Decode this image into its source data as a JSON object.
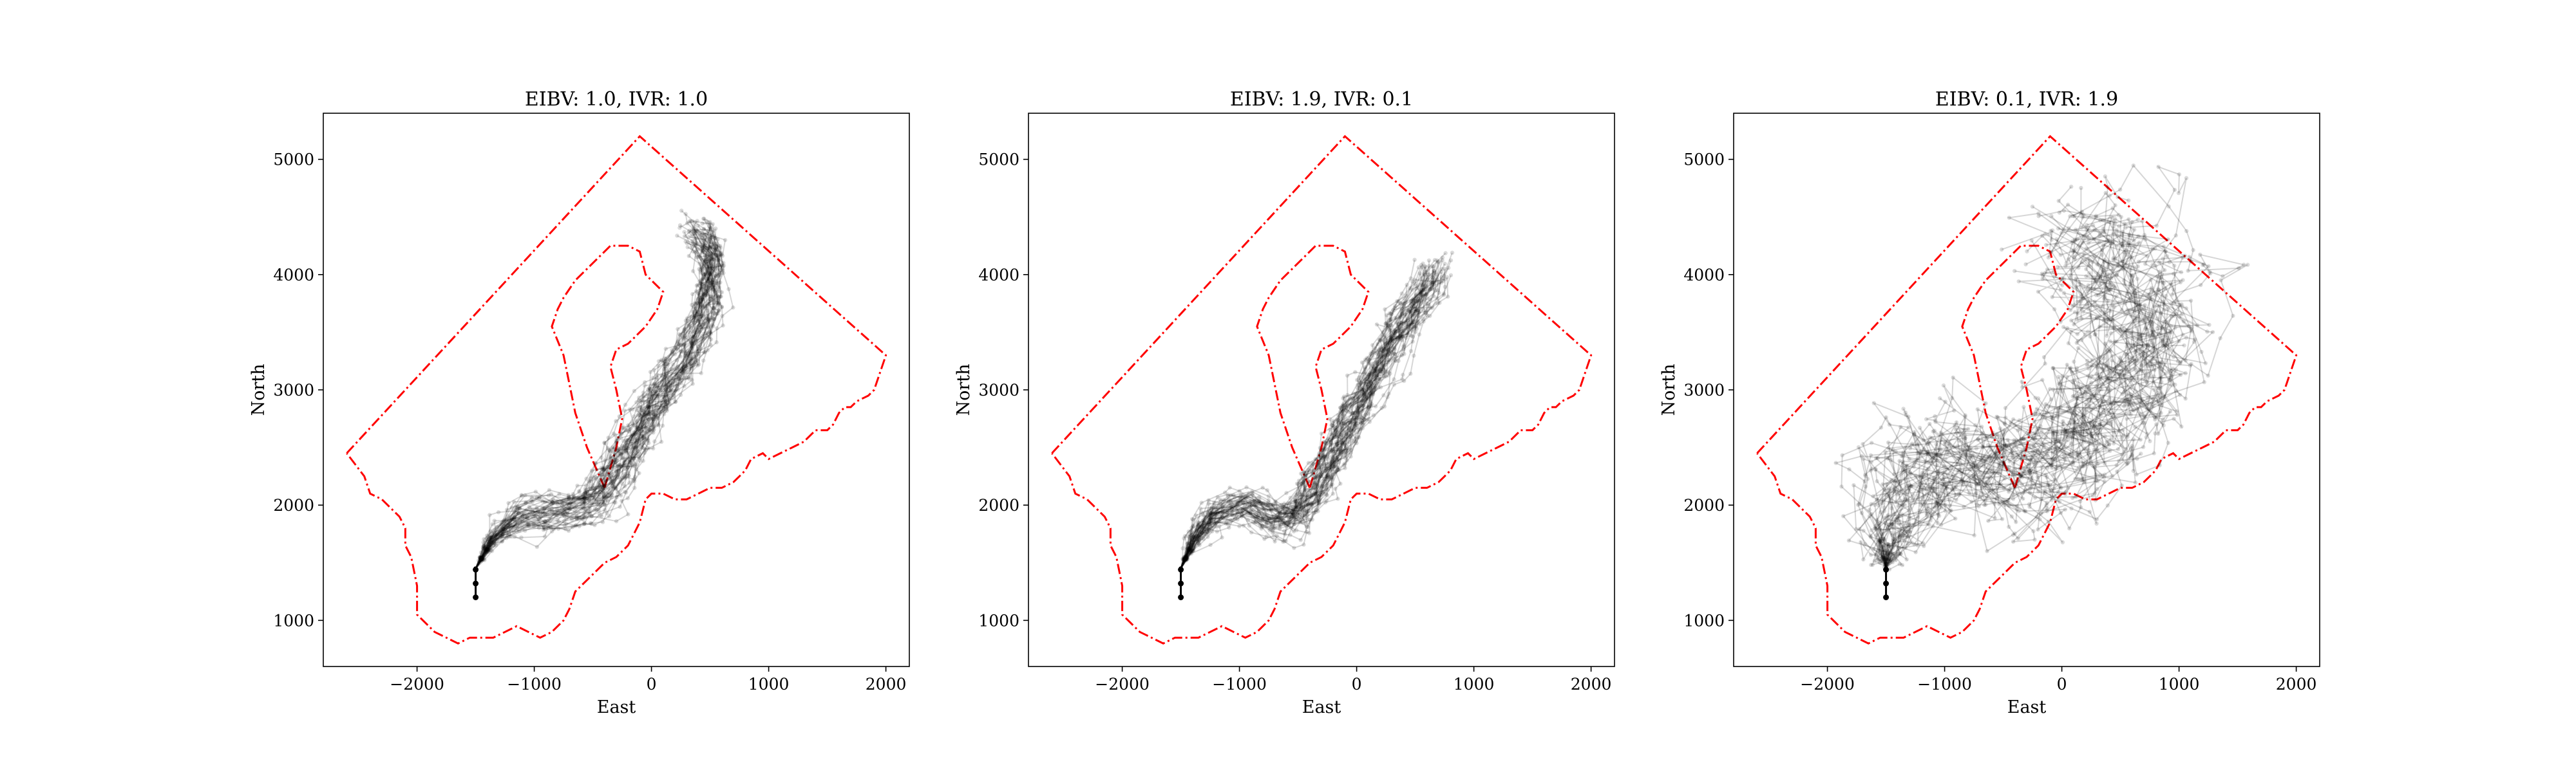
{
  "chart_data": [
    {
      "type": "line",
      "title": "EIBV: 1.0, IVR: 1.0",
      "xlabel": "East",
      "ylabel": "North",
      "xlim": [
        -2800,
        2200
      ],
      "ylim": [
        600,
        5400
      ],
      "xticks": [
        -2000,
        -1000,
        0,
        1000,
        2000
      ],
      "xtick_labels": [
        "−2000",
        "−1000",
        "0",
        "1000",
        "2000"
      ],
      "yticks": [
        1000,
        2000,
        3000,
        4000,
        5000
      ],
      "ytick_labels": [
        "1000",
        "2000",
        "3000",
        "4000",
        "5000"
      ],
      "grid": false,
      "colors": {
        "boundary": "#ff0000",
        "trajectory": "#000000"
      },
      "start": [
        -1500,
        1200
      ],
      "mean_path": [
        [
          -1500,
          1450
        ],
        [
          -1350,
          1700
        ],
        [
          -1150,
          1880
        ],
        [
          -900,
          1950
        ],
        [
          -650,
          1970
        ],
        [
          -450,
          2050
        ],
        [
          -280,
          2300
        ],
        [
          -100,
          2650
        ],
        [
          100,
          3000
        ],
        [
          300,
          3300
        ],
        [
          450,
          3650
        ],
        [
          500,
          3950
        ],
        [
          520,
          4250
        ],
        [
          400,
          4380
        ]
      ],
      "spread": 130,
      "n_paths": 45
    },
    {
      "type": "line",
      "title": "EIBV: 1.9, IVR: 0.1",
      "xlabel": "East",
      "ylabel": "North",
      "xlim": [
        -2800,
        2200
      ],
      "ylim": [
        600,
        5400
      ],
      "xticks": [
        -2000,
        -1000,
        0,
        1000,
        2000
      ],
      "xtick_labels": [
        "−2000",
        "−1000",
        "0",
        "1000",
        "2000"
      ],
      "yticks": [
        1000,
        2000,
        3000,
        4000,
        5000
      ],
      "ytick_labels": [
        "1000",
        "2000",
        "3000",
        "4000",
        "5000"
      ],
      "grid": false,
      "colors": {
        "boundary": "#ff0000",
        "trajectory": "#000000"
      },
      "start": [
        -1500,
        1200
      ],
      "mean_path": [
        [
          -1500,
          1450
        ],
        [
          -1380,
          1700
        ],
        [
          -1200,
          1920
        ],
        [
          -950,
          2000
        ],
        [
          -750,
          1900
        ],
        [
          -550,
          1850
        ],
        [
          -380,
          2100
        ],
        [
          -200,
          2450
        ],
        [
          -20,
          2800
        ],
        [
          150,
          3150
        ],
        [
          300,
          3450
        ],
        [
          450,
          3700
        ],
        [
          600,
          3900
        ],
        [
          650,
          4050
        ]
      ],
      "spread": 120,
      "n_paths": 45
    },
    {
      "type": "line",
      "title": "EIBV: 0.1, IVR: 1.9",
      "xlabel": "East",
      "ylabel": "North",
      "xlim": [
        -2800,
        2200
      ],
      "ylim": [
        600,
        5400
      ],
      "xticks": [
        -2000,
        -1000,
        0,
        1000,
        2000
      ],
      "xtick_labels": [
        "−2000",
        "−1000",
        "0",
        "1000",
        "2000"
      ],
      "yticks": [
        1000,
        2000,
        3000,
        4000,
        5000
      ],
      "ytick_labels": [
        "1000",
        "2000",
        "3000",
        "4000",
        "5000"
      ],
      "grid": false,
      "colors": {
        "boundary": "#ff0000",
        "trajectory": "#000000"
      },
      "start": [
        -1500,
        1200
      ],
      "mean_path": [
        [
          -1500,
          1450
        ],
        [
          -1500,
          1750
        ],
        [
          -1350,
          2100
        ],
        [
          -1100,
          2300
        ],
        [
          -800,
          2350
        ],
        [
          -550,
          2300
        ],
        [
          -350,
          2200
        ],
        [
          -100,
          2350
        ],
        [
          150,
          2600
        ],
        [
          400,
          2900
        ],
        [
          600,
          3200
        ],
        [
          700,
          3500
        ],
        [
          650,
          3800
        ],
        [
          450,
          4050
        ],
        [
          100,
          4250
        ]
      ],
      "spread": 450,
      "n_paths": 45
    }
  ],
  "boundary_outer": [
    [
      -2600,
      2450
    ],
    [
      -100,
      5200
    ],
    [
      2000,
      3300
    ],
    [
      1950,
      3150
    ],
    [
      1900,
      3000
    ],
    [
      1850,
      2950
    ],
    [
      1750,
      2900
    ],
    [
      1700,
      2850
    ],
    [
      1650,
      2850
    ],
    [
      1600,
      2800
    ],
    [
      1550,
      2700
    ],
    [
      1500,
      2650
    ],
    [
      1400,
      2650
    ],
    [
      1350,
      2600
    ],
    [
      1300,
      2550
    ],
    [
      1200,
      2500
    ],
    [
      1100,
      2450
    ],
    [
      1000,
      2400
    ],
    [
      950,
      2450
    ],
    [
      850,
      2400
    ],
    [
      800,
      2300
    ],
    [
      750,
      2250
    ],
    [
      700,
      2200
    ],
    [
      600,
      2150
    ],
    [
      500,
      2150
    ],
    [
      400,
      2100
    ],
    [
      300,
      2050
    ],
    [
      200,
      2050
    ],
    [
      100,
      2100
    ],
    [
      0,
      2100
    ],
    [
      -50,
      2050
    ],
    [
      -100,
      1850
    ],
    [
      -150,
      1750
    ],
    [
      -200,
      1650
    ],
    [
      -300,
      1550
    ],
    [
      -400,
      1500
    ],
    [
      -500,
      1400
    ],
    [
      -600,
      1300
    ],
    [
      -650,
      1250
    ],
    [
      -700,
      1100
    ],
    [
      -750,
      1000
    ],
    [
      -850,
      900
    ],
    [
      -950,
      850
    ],
    [
      -1050,
      900
    ],
    [
      -1150,
      950
    ],
    [
      -1250,
      900
    ],
    [
      -1350,
      850
    ],
    [
      -1400,
      850
    ],
    [
      -1450,
      850
    ],
    [
      -1550,
      850
    ],
    [
      -1650,
      800
    ],
    [
      -1750,
      850
    ],
    [
      -1850,
      900
    ],
    [
      -1900,
      950
    ],
    [
      -1950,
      1000
    ],
    [
      -2000,
      1050
    ],
    [
      -2000,
      1300
    ],
    [
      -2050,
      1550
    ],
    [
      -2100,
      1650
    ],
    [
      -2100,
      1800
    ],
    [
      -2150,
      1900
    ],
    [
      -2250,
      2000
    ],
    [
      -2300,
      2050
    ],
    [
      -2400,
      2100
    ],
    [
      -2450,
      2250
    ],
    [
      -2600,
      2450
    ]
  ],
  "boundary_inner": [
    [
      -400,
      2150
    ],
    [
      -550,
      2500
    ],
    [
      -650,
      2800
    ],
    [
      -750,
      3300
    ],
    [
      -850,
      3550
    ],
    [
      -800,
      3700
    ],
    [
      -750,
      3800
    ],
    [
      -650,
      3950
    ],
    [
      -550,
      4050
    ],
    [
      -450,
      4150
    ],
    [
      -350,
      4250
    ],
    [
      -200,
      4250
    ],
    [
      -100,
      4200
    ],
    [
      -50,
      4000
    ],
    [
      100,
      3850
    ],
    [
      50,
      3700
    ],
    [
      -50,
      3550
    ],
    [
      -100,
      3500
    ],
    [
      -150,
      3450
    ],
    [
      -200,
      3400
    ],
    [
      -300,
      3350
    ],
    [
      -350,
      3200
    ],
    [
      -300,
      3000
    ],
    [
      -250,
      2750
    ],
    [
      -300,
      2500
    ],
    [
      -400,
      2150
    ]
  ]
}
